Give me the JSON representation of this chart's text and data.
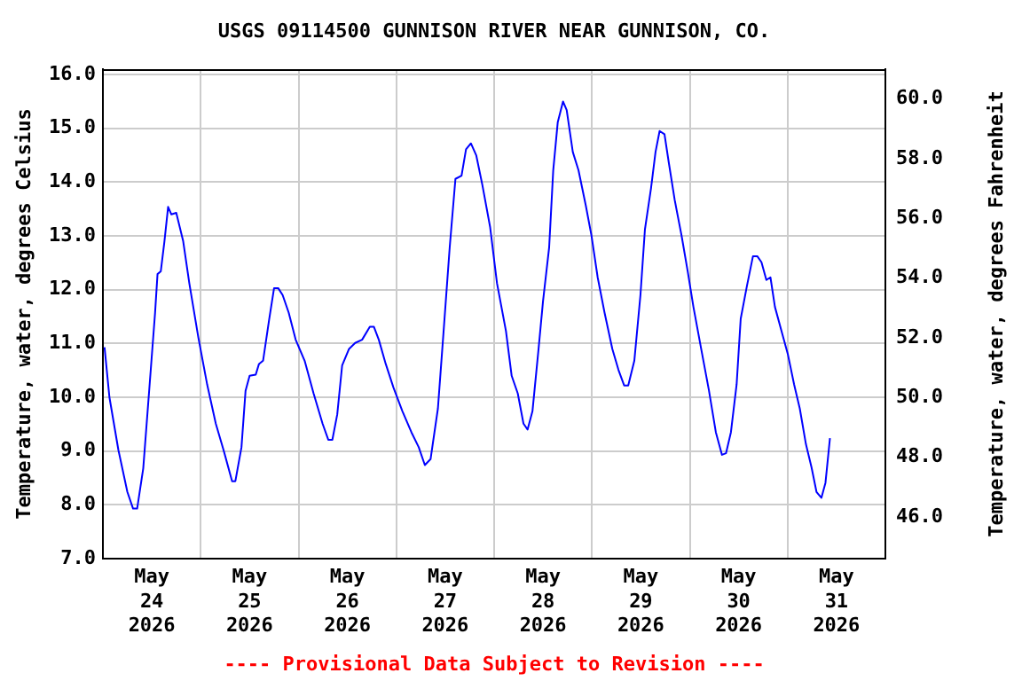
{
  "chart_data": {
    "type": "line",
    "title": "USGS 09114500 GUNNISON RIVER NEAR GUNNISON, CO.",
    "ylabel": "Temperature, water, degrees Celsius",
    "y2label": "Temperature, water, degrees Fahrenheit",
    "annotations": [
      "---- Provisional Data Subject to Revision ----"
    ],
    "x": [
      "2026-05-24T00:24",
      "2026-05-24T01:36",
      "2026-05-24T03:48",
      "2026-05-24T06:00",
      "2026-05-24T07:24",
      "2026-05-24T08:24",
      "2026-05-24T09:54",
      "2026-05-24T11:18",
      "2026-05-24T12:48",
      "2026-05-24T13:24",
      "2026-05-24T14:12",
      "2026-05-24T15:06",
      "2026-05-24T16:00",
      "2026-05-24T16:48",
      "2026-05-24T18:00",
      "2026-05-24T19:42",
      "2026-05-24T21:12",
      "2026-05-24T23:24",
      "2026-05-25T01:36",
      "2026-05-25T03:42",
      "2026-05-25T05:36",
      "2026-05-25T07:42",
      "2026-05-25T08:30",
      "2026-05-25T10:00",
      "2026-05-25T11:00",
      "2026-05-25T12:00",
      "2026-05-25T13:30",
      "2026-05-25T14:18",
      "2026-05-25T15:18",
      "2026-05-25T16:48",
      "2026-05-25T18:00",
      "2026-05-25T19:00",
      "2026-05-25T20:06",
      "2026-05-25T21:36",
      "2026-05-25T23:18",
      "2026-05-26T01:30",
      "2026-05-26T03:42",
      "2026-05-26T05:54",
      "2026-05-26T07:18",
      "2026-05-26T08:18",
      "2026-05-26T09:30",
      "2026-05-26T10:42",
      "2026-05-26T12:24",
      "2026-05-26T13:54",
      "2026-05-26T15:36",
      "2026-05-26T17:30",
      "2026-05-26T18:30",
      "2026-05-26T19:42",
      "2026-05-26T21:24",
      "2026-05-26T23:18",
      "2026-05-27T01:30",
      "2026-05-27T03:42",
      "2026-05-27T05:30",
      "2026-05-27T07:00",
      "2026-05-27T08:24",
      "2026-05-27T10:12",
      "2026-05-27T11:36",
      "2026-05-27T13:06",
      "2026-05-27T14:30",
      "2026-05-27T16:00",
      "2026-05-27T17:06",
      "2026-05-27T18:18",
      "2026-05-27T19:36",
      "2026-05-27T21:06",
      "2026-05-27T23:00",
      "2026-05-28T00:42",
      "2026-05-28T02:54",
      "2026-05-28T04:18",
      "2026-05-28T05:48",
      "2026-05-28T07:12",
      "2026-05-28T08:12",
      "2026-05-28T09:24",
      "2026-05-28T10:54",
      "2026-05-28T12:00",
      "2026-05-28T13:30",
      "2026-05-28T14:30",
      "2026-05-28T15:36",
      "2026-05-28T16:54",
      "2026-05-28T17:48",
      "2026-05-28T19:18",
      "2026-05-28T20:42",
      "2026-05-28T22:30",
      "2026-05-28T23:54",
      "2026-05-29T01:24",
      "2026-05-29T03:06",
      "2026-05-29T05:00",
      "2026-05-29T06:30",
      "2026-05-29T07:54",
      "2026-05-29T08:54",
      "2026-05-29T10:24",
      "2026-05-29T11:54",
      "2026-05-29T13:00",
      "2026-05-29T14:30",
      "2026-05-29T15:36",
      "2026-05-29T16:36",
      "2026-05-29T17:48",
      "2026-05-29T18:48",
      "2026-05-29T20:18",
      "2026-05-29T22:00",
      "2026-05-29T23:30",
      "2026-05-30T00:54",
      "2026-05-30T02:48",
      "2026-05-30T04:42",
      "2026-05-30T06:24",
      "2026-05-30T07:54",
      "2026-05-30T08:54",
      "2026-05-30T10:06",
      "2026-05-30T11:30",
      "2026-05-30T12:30",
      "2026-05-30T14:00",
      "2026-05-30T15:30",
      "2026-05-30T16:36",
      "2026-05-30T17:36",
      "2026-05-30T18:48",
      "2026-05-30T19:48",
      "2026-05-30T20:54",
      "2026-05-30T22:42",
      "2026-05-31T00:06",
      "2026-05-31T01:36",
      "2026-05-31T03:00",
      "2026-05-31T04:30",
      "2026-05-31T05:54",
      "2026-05-31T07:06",
      "2026-05-31T08:18",
      "2026-05-31T09:18",
      "2026-05-31T10:24"
    ],
    "series": [
      {
        "color": "#0000ff",
        "values": [
          10.93,
          10.0,
          9.02,
          8.24,
          7.93,
          7.93,
          8.68,
          10.07,
          11.57,
          12.29,
          12.34,
          12.9,
          13.54,
          13.4,
          13.43,
          12.9,
          12.12,
          11.12,
          10.23,
          9.51,
          9.02,
          8.44,
          8.44,
          9.07,
          10.12,
          10.4,
          10.42,
          10.62,
          10.68,
          11.45,
          12.03,
          12.03,
          11.9,
          11.57,
          11.07,
          10.68,
          10.07,
          9.51,
          9.21,
          9.21,
          9.68,
          10.59,
          10.9,
          11.01,
          11.07,
          11.31,
          11.31,
          11.07,
          10.62,
          10.18,
          9.74,
          9.35,
          9.07,
          8.74,
          8.85,
          9.79,
          11.23,
          12.79,
          14.06,
          14.12,
          14.61,
          14.72,
          14.5,
          13.95,
          13.17,
          12.12,
          11.23,
          10.4,
          10.07,
          9.51,
          9.4,
          9.74,
          10.9,
          11.79,
          12.79,
          14.22,
          15.11,
          15.5,
          15.34,
          14.56,
          14.22,
          13.56,
          13.0,
          12.23,
          11.57,
          10.9,
          10.51,
          10.22,
          10.22,
          10.68,
          11.9,
          13.12,
          13.89,
          14.56,
          14.95,
          14.89,
          14.39,
          13.67,
          13.0,
          12.34,
          11.68,
          10.9,
          10.13,
          9.35,
          8.93,
          8.96,
          9.35,
          10.24,
          11.46,
          12.06,
          12.62,
          12.62,
          12.51,
          12.18,
          12.23,
          11.68,
          11.18,
          10.79,
          10.24,
          9.79,
          9.13,
          8.69,
          8.24,
          8.13,
          8.41,
          9.24
        ]
      }
    ],
    "xlim": [
      "2026-05-24T00:00",
      "2026-06-01T00:00"
    ],
    "xticks": [
      {
        "value": "2026-05-24T12:00",
        "label": "May\n24\n2026"
      },
      {
        "value": "2026-05-25T00:00",
        "label": null
      },
      {
        "value": "2026-05-25T12:00",
        "label": "May\n25\n2026"
      },
      {
        "value": "2026-05-26T00:00",
        "label": null
      },
      {
        "value": "2026-05-26T12:00",
        "label": "May\n26\n2026"
      },
      {
        "value": "2026-05-27T00:00",
        "label": null
      },
      {
        "value": "2026-05-27T12:00",
        "label": "May\n27\n2026"
      },
      {
        "value": "2026-05-28T00:00",
        "label": null
      },
      {
        "value": "2026-05-28T12:00",
        "label": "May\n28\n2026"
      },
      {
        "value": "2026-05-29T00:00",
        "label": null
      },
      {
        "value": "2026-05-29T12:00",
        "label": "May\n29\n2026"
      },
      {
        "value": "2026-05-30T00:00",
        "label": null
      },
      {
        "value": "2026-05-30T12:00",
        "label": "May\n30\n2026"
      },
      {
        "value": "2026-05-31T00:00",
        "label": null
      },
      {
        "value": "2026-05-31T12:00",
        "label": "May\n31\n2026"
      }
    ],
    "ylim": [
      7,
      16.1
    ],
    "yticks": [
      {
        "value": 7,
        "label": "7.0"
      },
      {
        "value": 8,
        "label": "8.0"
      },
      {
        "value": 9,
        "label": "9.0"
      },
      {
        "value": 10,
        "label": "10.0"
      },
      {
        "value": 11,
        "label": "11.0"
      },
      {
        "value": 12,
        "label": "12.0"
      },
      {
        "value": 13,
        "label": "13.0"
      },
      {
        "value": 14,
        "label": "14.0"
      },
      {
        "value": 15,
        "label": "15.0"
      },
      {
        "value": 16,
        "label": "16.0"
      }
    ],
    "y2lim": [
      44.6,
      61.0
    ],
    "y2ticks": [
      {
        "value": 46,
        "label": "46.0"
      },
      {
        "value": 48,
        "label": "48.0"
      },
      {
        "value": 50,
        "label": "50.0"
      },
      {
        "value": 52,
        "label": "52.0"
      },
      {
        "value": 54,
        "label": "54.0"
      },
      {
        "value": 56,
        "label": "56.0"
      },
      {
        "value": 58,
        "label": "58.0"
      },
      {
        "value": 60,
        "label": "60.0"
      }
    ],
    "grid": true
  }
}
